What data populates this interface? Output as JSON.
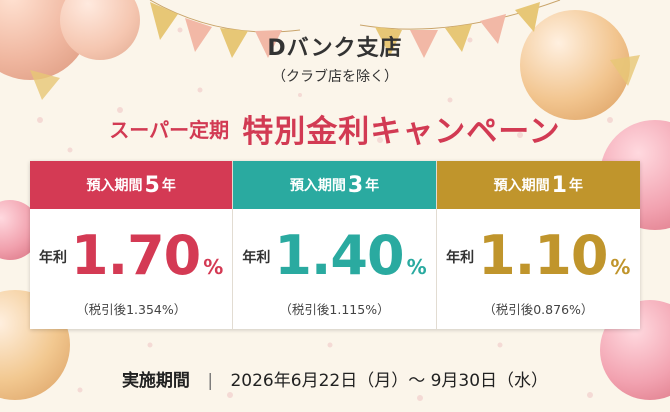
{
  "branch": "Dバンク支店",
  "note": "（クラブ店を除く）",
  "headline_pre": "スーパー定期",
  "headline_main": "特別金利キャンペーン",
  "annual_rate_label": "年利",
  "percent_sign": "%",
  "plans": [
    {
      "head_prefix": "預入期間",
      "years": "5",
      "head_suffix": "年",
      "rate": "1.70",
      "after_tax": "（税引後1.354%）",
      "color": "#d43a54"
    },
    {
      "head_prefix": "預入期間",
      "years": "3",
      "head_suffix": "年",
      "rate": "1.40",
      "after_tax": "（税引後1.115%）",
      "color": "#2aaaa0"
    },
    {
      "head_prefix": "預入期間",
      "years": "1",
      "head_suffix": "年",
      "rate": "1.10",
      "after_tax": "（税引後0.876%）",
      "color": "#c0952c"
    }
  ],
  "period_label": "実施期間",
  "period_dates": "2026年6月22日（月）〜 9月30日（水）",
  "colors": {
    "accent_red": "#d23a53",
    "background": "#fbf5ea"
  }
}
